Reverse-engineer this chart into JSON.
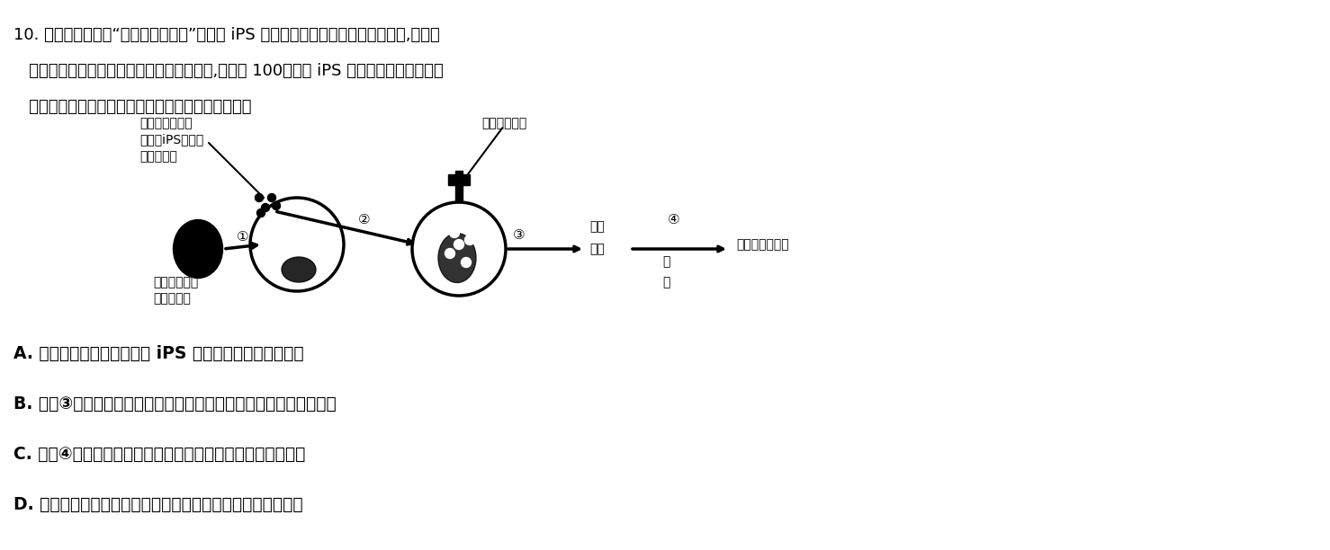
{
  "bg_color": "#ffffff",
  "title_line1": "10. 研究人员欲采用“异源囊胚补全法”将人源 iPS 细胞培育出的肾元祖细胞导人囊胚,后移植",
  "title_line2": "   到去除生肾区既存的肾元祖细胞的母猪体内,培育出 100％人源 iPS 细胞来源的肾单位并实",
  "title_line3": "   际应用于移植医疗（如图所示）。下列说法正确的是",
  "label_A": "A. 培育人源肾元祖细胞需向 iPS 细胞培养液中加人生长素",
  "label_B": "B. 过程③需要将荧光蛋白标记的人源肾元祖细胞植人囊胚的内细胞团",
  "label_C": "C. 过程④操作之前需对代孕母猪进行超数排卵和同期发情处理",
  "label_D": "D. 该技术培育的人源肾脏不必考虑肾移植个体之间的遗传差异",
  "diagram_label_top_left": "荧光蛋白基因标\n记的人iPS诱导的\n肾元祖细胞",
  "diagram_label_top_mid": "异源囊胚补全",
  "diagram_label_bottom_left": "敲除生肾基因\n的猪受精卵",
  "diagram_label_step3_right1": "代孕",
  "diagram_label_step3_right2": "母猪",
  "diagram_label_step3_right3": "分",
  "diagram_label_step3_right4": "娩",
  "diagram_label_final": "荧光标记的肾脏",
  "circle1_num": "①",
  "circle2_num": "②",
  "circle3_num": "③",
  "circle4_num": "④"
}
